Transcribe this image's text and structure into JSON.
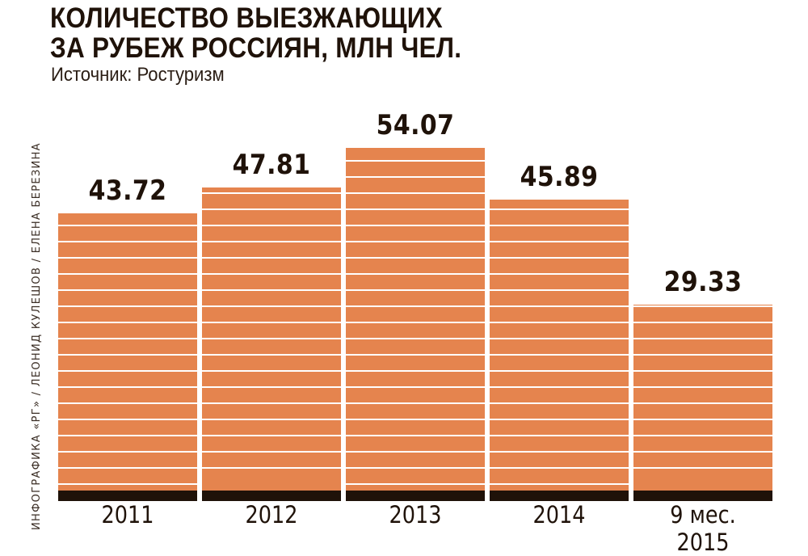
{
  "title_line1": "КОЛИЧЕСТВО ВЫЕЗЖАЮЩИХ",
  "title_line2": "ЗА РУБЕЖ РОССИЯН, МЛН ЧЕЛ.",
  "source": "Источник: Ростуризм",
  "credit": "ИНФОГРАФИКА «РГ» / ЛЕОНИД КУЛЕШОВ / ЕЛЕНА БЕРЕЗИНА",
  "colors": {
    "bar": "#e5844e",
    "base": "#1f1209",
    "stripe": "#ffffff",
    "text": "#1f1209"
  },
  "chart_data": {
    "type": "bar",
    "title": "КОЛИЧЕСТВО ВЫЕЗЖАЮЩИХ ЗА РУБЕЖ РОССИЯН, МЛН ЧЕЛ.",
    "subtitle": "Источник: Ростуризм",
    "categories": [
      "2011",
      "2012",
      "2013",
      "2014",
      "9 мес. 2015"
    ],
    "values": [
      43.72,
      47.81,
      54.07,
      45.89,
      29.33
    ],
    "value_labels": [
      "43.72",
      "47.81",
      "54.07",
      "45.89",
      "29.33"
    ],
    "xlabel": "",
    "ylabel": "млн чел.",
    "grid": false,
    "legend": null
  }
}
